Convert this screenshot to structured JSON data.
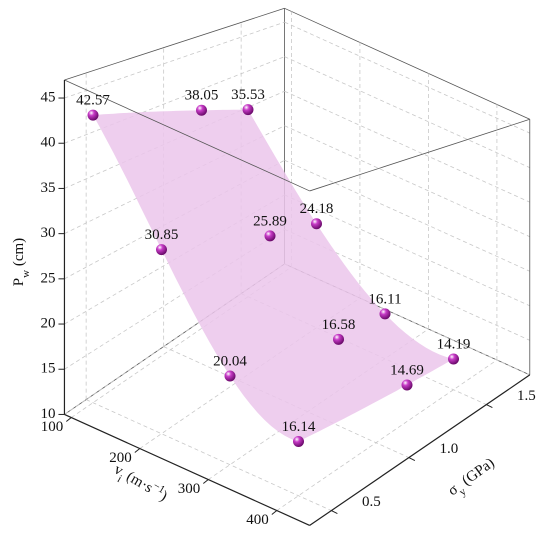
{
  "chart_data": {
    "type": "scatter3d",
    "x": [
      100,
      100,
      100,
      200,
      200,
      200,
      300,
      300,
      300,
      400,
      400,
      400
    ],
    "y": [
      0.5,
      1.2,
      1.5,
      0.5,
      1.2,
      1.5,
      0.5,
      1.2,
      1.5,
      0.5,
      1.2,
      1.5
    ],
    "values": [
      42.57,
      38.05,
      35.53,
      30.85,
      25.89,
      24.18,
      20.04,
      16.58,
      16.11,
      16.14,
      14.69,
      14.19
    ],
    "xlim": [
      90,
      448
    ],
    "xticks": [
      100,
      200,
      300,
      400
    ],
    "ylim": [
      0.36,
      1.78
    ],
    "yticks": [
      {
        "value": 0.5,
        "label": "0.5"
      },
      {
        "value": 1.0,
        "label": "1.0"
      },
      {
        "value": 1.5,
        "label": "1.5"
      }
    ],
    "zlim": [
      10,
      47
    ],
    "zticks": [
      10,
      15,
      20,
      25,
      30,
      35,
      40,
      45
    ],
    "xlabel": [
      {
        "text": "v"
      },
      {
        "text": "i",
        "sub": true
      },
      {
        "text": " (m·s"
      },
      {
        "text": "−1",
        "sup": true
      },
      {
        "text": ")"
      }
    ],
    "ylabel": [
      {
        "text": "σ"
      },
      {
        "text": "y",
        "sub": true
      },
      {
        "text": " (GPa)"
      }
    ],
    "zlabel": [
      {
        "text": "P"
      },
      {
        "text": "w",
        "sub": true
      },
      {
        "text": " (cm)"
      }
    ],
    "color": "#c83cc8",
    "surface_color": "#ebc5eb",
    "grid": true
  }
}
